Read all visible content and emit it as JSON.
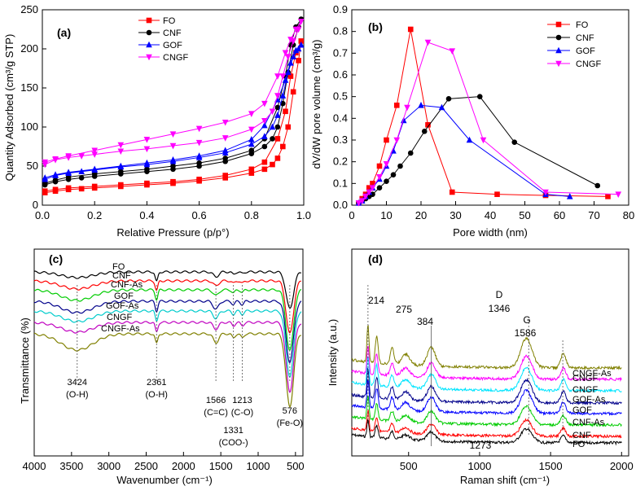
{
  "chart_data": [
    {
      "panel": "(a)",
      "type": "line",
      "xlabel": "Relative Pressure (p/p°)",
      "ylabel": "Quantity Adsorbed (cm³/g STP)",
      "xlim": [
        0,
        1.0
      ],
      "ylim": [
        0,
        250
      ],
      "xticks": [
        0.0,
        0.2,
        0.4,
        0.6,
        0.8,
        1.0
      ],
      "xtick_labels": [
        "0.0",
        "0.2",
        "0.4",
        "0.6",
        "0.8",
        "1.0"
      ],
      "yticks": [
        0,
        50,
        100,
        150,
        200,
        250
      ],
      "ytick_labels": [
        "0",
        "50",
        "100",
        "150",
        "200",
        "250"
      ],
      "legend_position": "top-center",
      "series": [
        {
          "name": "FO",
          "color": "#ff0000",
          "marker": "square",
          "x": [
            0.01,
            0.05,
            0.1,
            0.15,
            0.2,
            0.3,
            0.4,
            0.5,
            0.6,
            0.7,
            0.8,
            0.85,
            0.88,
            0.9,
            0.92,
            0.94,
            0.96,
            0.98,
            0.99,
            0.97,
            0.95,
            0.93,
            0.9,
            0.85,
            0.8,
            0.7,
            0.6,
            0.5,
            0.4,
            0.3,
            0.2,
            0.1,
            0.05,
            0.01
          ],
          "y": [
            16,
            18,
            20,
            21,
            22,
            24,
            26,
            28,
            31,
            35,
            41,
            46,
            52,
            60,
            75,
            100,
            145,
            185,
            210,
            195,
            165,
            120,
            85,
            55,
            46,
            38,
            33,
            30,
            28,
            26,
            24,
            22,
            20,
            18
          ]
        },
        {
          "name": "CNF",
          "color": "#000000",
          "marker": "circle",
          "x": [
            0.01,
            0.05,
            0.1,
            0.15,
            0.2,
            0.3,
            0.4,
            0.5,
            0.6,
            0.7,
            0.8,
            0.85,
            0.88,
            0.9,
            0.92,
            0.94,
            0.96,
            0.98,
            0.99,
            0.97,
            0.95,
            0.93,
            0.9,
            0.85,
            0.8,
            0.7,
            0.6,
            0.5,
            0.4,
            0.3,
            0.2,
            0.1,
            0.05,
            0.01
          ],
          "y": [
            26,
            30,
            33,
            35,
            37,
            40,
            43,
            46,
            50,
            56,
            66,
            75,
            85,
            100,
            130,
            170,
            205,
            228,
            238,
            228,
            205,
            165,
            125,
            85,
            70,
            60,
            54,
            50,
            46,
            43,
            40,
            36,
            32,
            28
          ]
        },
        {
          "name": "GOF",
          "color": "#0000ff",
          "marker": "triangle-up",
          "x": [
            0.01,
            0.05,
            0.1,
            0.15,
            0.2,
            0.3,
            0.4,
            0.5,
            0.6,
            0.7,
            0.8,
            0.85,
            0.88,
            0.9,
            0.92,
            0.94,
            0.96,
            0.98,
            0.99,
            0.97,
            0.95,
            0.93,
            0.9,
            0.85,
            0.8,
            0.7,
            0.6,
            0.5,
            0.4,
            0.3,
            0.2,
            0.1,
            0.05,
            0.01
          ],
          "y": [
            33,
            38,
            41,
            43,
            45,
            49,
            52,
            56,
            61,
            67,
            78,
            88,
            100,
            115,
            140,
            170,
            190,
            200,
            205,
            198,
            182,
            160,
            135,
            102,
            84,
            70,
            63,
            58,
            54,
            50,
            46,
            42,
            39,
            35
          ]
        },
        {
          "name": "CNGF",
          "color": "#ff00ff",
          "marker": "triangle-down",
          "x": [
            0.01,
            0.05,
            0.1,
            0.15,
            0.2,
            0.3,
            0.4,
            0.5,
            0.6,
            0.7,
            0.8,
            0.85,
            0.88,
            0.9,
            0.92,
            0.94,
            0.96,
            0.98,
            0.99,
            0.97,
            0.95,
            0.93,
            0.9,
            0.85,
            0.8,
            0.7,
            0.6,
            0.5,
            0.4,
            0.3,
            0.2,
            0.1,
            0.05,
            0.01
          ],
          "y": [
            52,
            58,
            61,
            63,
            65,
            69,
            72,
            76,
            80,
            86,
            97,
            108,
            120,
            140,
            165,
            190,
            210,
            225,
            235,
            225,
            212,
            195,
            165,
            130,
            117,
            106,
            98,
            91,
            84,
            77,
            70,
            63,
            59,
            55
          ]
        }
      ]
    },
    {
      "panel": "(b)",
      "type": "line",
      "xlabel": "Pore width (nm)",
      "ylabel": "dV/dW pore volume (cm³/g)",
      "xlim": [
        0,
        80
      ],
      "ylim": [
        0.0,
        0.9
      ],
      "xticks": [
        0,
        10,
        20,
        30,
        40,
        50,
        60,
        70,
        80
      ],
      "xtick_labels": [
        "0",
        "10",
        "20",
        "30",
        "40",
        "50",
        "60",
        "70",
        "80"
      ],
      "yticks": [
        0.0,
        0.1,
        0.2,
        0.3,
        0.4,
        0.5,
        0.6,
        0.7,
        0.8,
        0.9
      ],
      "ytick_labels": [
        "0.0",
        "0.1",
        "0.2",
        "0.3",
        "0.4",
        "0.5",
        "0.6",
        "0.7",
        "0.8",
        "0.9"
      ],
      "legend_position": "top-right",
      "series": [
        {
          "name": "FO",
          "color": "#ff0000",
          "marker": "square",
          "x": [
            2,
            3,
            4,
            5,
            6,
            8,
            10,
            13,
            17,
            22,
            29,
            42,
            56,
            74
          ],
          "y": [
            0.01,
            0.03,
            0.05,
            0.08,
            0.1,
            0.18,
            0.3,
            0.46,
            0.81,
            0.37,
            0.06,
            0.05,
            0.045,
            0.04
          ]
        },
        {
          "name": "CNF",
          "color": "#000000",
          "marker": "circle",
          "x": [
            2,
            3,
            4,
            5,
            6,
            8,
            10,
            12,
            14,
            17,
            21,
            28,
            37,
            47,
            71
          ],
          "y": [
            0.01,
            0.02,
            0.03,
            0.04,
            0.05,
            0.08,
            0.11,
            0.14,
            0.18,
            0.24,
            0.34,
            0.49,
            0.5,
            0.29,
            0.09
          ]
        },
        {
          "name": "GOF",
          "color": "#0000ff",
          "marker": "triangle-up",
          "x": [
            2,
            3,
            4,
            5,
            6,
            8,
            10,
            12,
            15,
            20,
            26,
            34,
            56,
            63
          ],
          "y": [
            0.01,
            0.02,
            0.04,
            0.06,
            0.08,
            0.12,
            0.18,
            0.25,
            0.39,
            0.46,
            0.45,
            0.3,
            0.05,
            0.04
          ]
        },
        {
          "name": "CNGF",
          "color": "#ff00ff",
          "marker": "triangle-down",
          "x": [
            2,
            3,
            4,
            5,
            6,
            8,
            10,
            13,
            16,
            22,
            29,
            38,
            56,
            77
          ],
          "y": [
            0.01,
            0.02,
            0.04,
            0.06,
            0.08,
            0.13,
            0.19,
            0.3,
            0.45,
            0.75,
            0.71,
            0.3,
            0.06,
            0.05
          ]
        }
      ]
    },
    {
      "panel": "(c)",
      "type": "line",
      "xlabel": "Wavenumber (cm⁻¹)",
      "ylabel": "Transmittance (%)",
      "xlim": [
        4000,
        400
      ],
      "xticks": [
        4000,
        3500,
        3000,
        2500,
        2000,
        1500,
        1000,
        500
      ],
      "xtick_labels": [
        "4000",
        "3500",
        "3000",
        "2500",
        "2000",
        "1500",
        "1000",
        "500"
      ],
      "peaks": [
        3424,
        2361,
        1566,
        1331,
        1213,
        576
      ],
      "annotations": [
        {
          "value": "3424",
          "sub": "(O-H)",
          "x": 3424
        },
        {
          "value": "2361",
          "sub": "(O-H)",
          "x": 2361
        },
        {
          "value": "1566",
          "sub": "(C=C)",
          "x": 1566
        },
        {
          "value": "1331",
          "sub": "(COO-)",
          "x": 1331
        },
        {
          "value": "1213",
          "sub": "(C-O)",
          "x": 1213
        },
        {
          "value": "576",
          "sub": "(Fe-O)",
          "x": 576
        }
      ],
      "series": [
        {
          "name": "FO",
          "color": "#000000",
          "depths": [
            0.7,
            1.2,
            0.6,
            0.3,
            0.2,
            4.5
          ]
        },
        {
          "name": "CNF",
          "color": "#ff0000",
          "depths": [
            1.0,
            1.2,
            0.6,
            0.3,
            0.3,
            6.5
          ]
        },
        {
          "name": "CNF-As",
          "color": "#00cc00",
          "depths": [
            1.3,
            1.2,
            0.7,
            0.4,
            0.3,
            7.5
          ]
        },
        {
          "name": "GOF",
          "color": "#00008b",
          "depths": [
            1.4,
            1.2,
            1.0,
            0.4,
            0.4,
            7.5
          ]
        },
        {
          "name": "GOF-As",
          "color": "#00cccc",
          "depths": [
            1.3,
            1.2,
            0.9,
            0.4,
            0.4,
            8.0
          ]
        },
        {
          "name": "CNGF",
          "color": "#c000c0",
          "depths": [
            1.2,
            1.2,
            0.8,
            0.4,
            0.4,
            8.5
          ]
        },
        {
          "name": "CNGF-As",
          "color": "#808000",
          "depths": [
            2.0,
            1.2,
            1.1,
            0.5,
            0.5,
            9.0
          ]
        }
      ]
    },
    {
      "panel": "(d)",
      "type": "line",
      "xlabel": "Raman shift (cm⁻¹)",
      "ylabel": "Intensity (a.u.)",
      "xlim": [
        100,
        2050
      ],
      "xticks": [
        500,
        1000,
        1500,
        2000
      ],
      "xtick_labels": [
        "500",
        "1000",
        "1500",
        "2000"
      ],
      "peaks": [
        214,
        275,
        384,
        1346,
        1586
      ],
      "peak_labels": [
        {
          "text": "214",
          "x": 214
        },
        {
          "text": "275",
          "x": 275
        },
        {
          "text": "384",
          "x": 384
        },
        {
          "text": "D",
          "x": 1346
        },
        {
          "text": "1346",
          "x": 1346
        },
        {
          "text": "G",
          "x": 1586
        },
        {
          "text": "1586",
          "x": 1586
        },
        {
          "text": "1273",
          "x": 1273
        }
      ],
      "series": [
        {
          "name": "FO",
          "color": "#000000"
        },
        {
          "name": "CNF",
          "color": "#ff0000"
        },
        {
          "name": "CNF-As",
          "color": "#00cc00"
        },
        {
          "name": "GOF",
          "color": "#0000ff"
        },
        {
          "name": "GOF-As",
          "color": "#00008b"
        },
        {
          "name": "CNGF",
          "color": "#00e5ff"
        },
        {
          "name": "CNGF",
          "color": "#ff00ff"
        },
        {
          "name": "CNGF-As",
          "color": "#808000"
        }
      ]
    }
  ]
}
